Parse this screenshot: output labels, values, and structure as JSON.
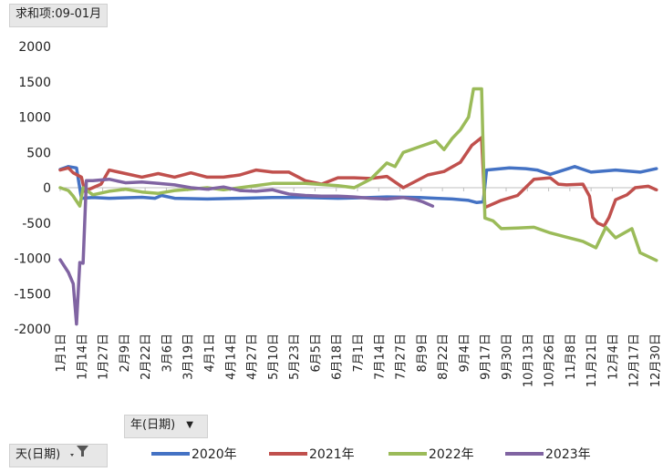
{
  "header": {
    "value_field": "求和项:09-01月"
  },
  "controls": {
    "year_field": "年(日期)",
    "day_field": "天(日期)"
  },
  "chart_data": {
    "type": "line",
    "ylim": [
      -2000,
      2000
    ],
    "yticks": [
      2000,
      1500,
      1000,
      500,
      0,
      -500,
      -1000,
      -1500,
      -2000
    ],
    "ytick_labels": [
      "2000",
      "1500",
      "1000",
      "500",
      "0",
      "-500",
      "-1000",
      "-1500",
      "-2000"
    ],
    "categories": [
      "1月1日",
      "1月14日",
      "1月27日",
      "2月9日",
      "2月22日",
      "3月6日",
      "3月19日",
      "4月1日",
      "4月14日",
      "4月27日",
      "5月10日",
      "5月23日",
      "6月5日",
      "6月18日",
      "7月1日",
      "7月14日",
      "7月27日",
      "8月9日",
      "8月22日",
      "9月4日",
      "9月17日",
      "9月30日",
      "10月13日",
      "10月26日",
      "11月8日",
      "11月21日",
      "12月4日",
      "12月17日",
      "12月30日"
    ],
    "grid": false,
    "legend_position": "bottom",
    "series": [
      {
        "name": "2020年",
        "color": "#4472c4",
        "values": [
          [
            0,
            260
          ],
          [
            5,
            300
          ],
          [
            10,
            280
          ],
          [
            13,
            -150
          ],
          [
            20,
            -140
          ],
          [
            30,
            -150
          ],
          [
            50,
            -135
          ],
          [
            58,
            -150
          ],
          [
            62,
            -110
          ],
          [
            70,
            -150
          ],
          [
            90,
            -160
          ],
          [
            110,
            -150
          ],
          [
            130,
            -140
          ],
          [
            150,
            -140
          ],
          [
            170,
            -150
          ],
          [
            190,
            -140
          ],
          [
            200,
            -130
          ],
          [
            220,
            -140
          ],
          [
            230,
            -150
          ],
          [
            240,
            -160
          ],
          [
            250,
            -180
          ],
          [
            255,
            -210
          ],
          [
            259,
            -200
          ],
          [
            261,
            250
          ],
          [
            275,
            280
          ],
          [
            285,
            270
          ],
          [
            292,
            250
          ],
          [
            300,
            190
          ],
          [
            315,
            300
          ],
          [
            325,
            220
          ],
          [
            340,
            250
          ],
          [
            355,
            220
          ],
          [
            365,
            270
          ]
        ]
      },
      {
        "name": "2021年",
        "color": "#c0504d",
        "values": [
          [
            0,
            250
          ],
          [
            5,
            280
          ],
          [
            8,
            210
          ],
          [
            13,
            150
          ],
          [
            15,
            -50
          ],
          [
            20,
            0
          ],
          [
            25,
            50
          ],
          [
            30,
            250
          ],
          [
            40,
            200
          ],
          [
            50,
            150
          ],
          [
            60,
            200
          ],
          [
            70,
            150
          ],
          [
            80,
            210
          ],
          [
            90,
            150
          ],
          [
            100,
            150
          ],
          [
            110,
            180
          ],
          [
            120,
            250
          ],
          [
            130,
            220
          ],
          [
            140,
            220
          ],
          [
            150,
            100
          ],
          [
            160,
            50
          ],
          [
            170,
            140
          ],
          [
            180,
            140
          ],
          [
            190,
            130
          ],
          [
            200,
            160
          ],
          [
            210,
            0
          ],
          [
            225,
            180
          ],
          [
            235,
            230
          ],
          [
            245,
            360
          ],
          [
            252,
            600
          ],
          [
            258,
            710
          ],
          [
            260,
            -280
          ],
          [
            270,
            -180
          ],
          [
            280,
            -110
          ],
          [
            290,
            120
          ],
          [
            300,
            140
          ],
          [
            305,
            50
          ],
          [
            310,
            40
          ],
          [
            320,
            50
          ],
          [
            324,
            -120
          ],
          [
            326,
            -420
          ],
          [
            329,
            -500
          ],
          [
            333,
            -540
          ],
          [
            336,
            -420
          ],
          [
            340,
            -170
          ],
          [
            347,
            -100
          ],
          [
            352,
            0
          ],
          [
            360,
            20
          ],
          [
            365,
            -30
          ]
        ]
      },
      {
        "name": "2022年",
        "color": "#9bbb59",
        "values": [
          [
            0,
            0
          ],
          [
            5,
            -40
          ],
          [
            8,
            -120
          ],
          [
            12,
            -260
          ],
          [
            14,
            0
          ],
          [
            20,
            -100
          ],
          [
            30,
            -50
          ],
          [
            40,
            -20
          ],
          [
            50,
            -60
          ],
          [
            60,
            -80
          ],
          [
            70,
            -40
          ],
          [
            80,
            -20
          ],
          [
            90,
            0
          ],
          [
            100,
            -30
          ],
          [
            110,
            0
          ],
          [
            130,
            60
          ],
          [
            150,
            60
          ],
          [
            170,
            30
          ],
          [
            180,
            0
          ],
          [
            190,
            120
          ],
          [
            200,
            350
          ],
          [
            205,
            300
          ],
          [
            210,
            500
          ],
          [
            220,
            580
          ],
          [
            230,
            660
          ],
          [
            235,
            540
          ],
          [
            240,
            700
          ],
          [
            245,
            820
          ],
          [
            250,
            1000
          ],
          [
            253,
            1400
          ],
          [
            258,
            1400
          ],
          [
            260,
            -430
          ],
          [
            265,
            -470
          ],
          [
            270,
            -580
          ],
          [
            280,
            -570
          ],
          [
            290,
            -560
          ],
          [
            300,
            -640
          ],
          [
            310,
            -700
          ],
          [
            320,
            -760
          ],
          [
            328,
            -850
          ],
          [
            334,
            -560
          ],
          [
            340,
            -710
          ],
          [
            350,
            -580
          ],
          [
            355,
            -920
          ],
          [
            365,
            -1030
          ]
        ]
      },
      {
        "name": "2023年",
        "color": "#8064a2",
        "values": [
          [
            0,
            -1020
          ],
          [
            5,
            -1200
          ],
          [
            8,
            -1360
          ],
          [
            10,
            -1930
          ],
          [
            12,
            -1060
          ],
          [
            14,
            -1070
          ],
          [
            16,
            100
          ],
          [
            20,
            100
          ],
          [
            30,
            120
          ],
          [
            40,
            70
          ],
          [
            50,
            80
          ],
          [
            60,
            60
          ],
          [
            70,
            40
          ],
          [
            80,
            0
          ],
          [
            90,
            -20
          ],
          [
            100,
            10
          ],
          [
            110,
            -40
          ],
          [
            120,
            -50
          ],
          [
            130,
            -30
          ],
          [
            140,
            -90
          ],
          [
            150,
            -110
          ],
          [
            160,
            -120
          ],
          [
            170,
            -120
          ],
          [
            180,
            -130
          ],
          [
            190,
            -150
          ],
          [
            200,
            -160
          ],
          [
            210,
            -140
          ],
          [
            218,
            -170
          ],
          [
            222,
            -200
          ],
          [
            228,
            -260
          ]
        ]
      }
    ]
  }
}
